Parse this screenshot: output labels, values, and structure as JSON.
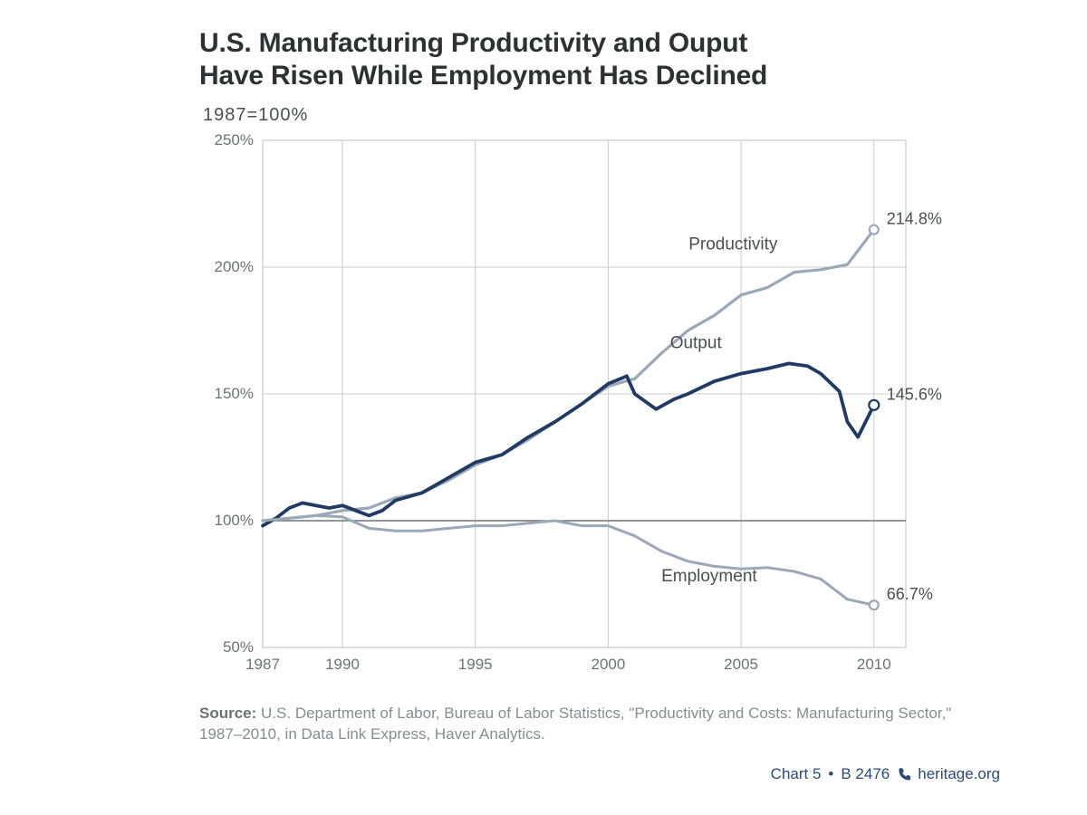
{
  "title_line1": "U.S. Manufacturing Productivity and Ouput",
  "title_line2": "Have Risen While Employment Has Declined",
  "subtitle": "1987=100%",
  "chart": {
    "type": "line",
    "background_color": "#ffffff",
    "grid_color": "#c9cbcc",
    "baseline_color": "#727476",
    "axis_label_color": "#6f7275",
    "axis_fontsize": 17,
    "series_label_fontsize": 19,
    "end_label_fontsize": 18,
    "x": {
      "min": 1987,
      "max": 2011.2,
      "ticks": [
        1987,
        1990,
        1995,
        2000,
        2005,
        2010
      ],
      "tick_labels": [
        "1987",
        "1990",
        "1995",
        "2000",
        "2005",
        "2010"
      ]
    },
    "y": {
      "min": 50,
      "max": 250,
      "ticks": [
        50,
        100,
        150,
        200,
        250
      ],
      "tick_labels": [
        "50%",
        "100%",
        "150%",
        "200%",
        "250%"
      ]
    },
    "baseline_y": 100,
    "series": [
      {
        "name": "Productivity",
        "color": "#9aa8b7",
        "line_width": 3.2,
        "marker_end": true,
        "marker_radius": 5,
        "marker_fill": "#ffffff",
        "marker_stroke": "#9aa8b7",
        "end_label": "214.8%",
        "label_pos": {
          "x": 2004.7,
          "y": 207
        },
        "data": [
          {
            "x": 1987,
            "y": 100
          },
          {
            "x": 1988,
            "y": 101
          },
          {
            "x": 1989,
            "y": 102
          },
          {
            "x": 1990,
            "y": 104
          },
          {
            "x": 1991,
            "y": 105
          },
          {
            "x": 1992,
            "y": 109
          },
          {
            "x": 1993,
            "y": 111
          },
          {
            "x": 1994,
            "y": 116
          },
          {
            "x": 1995,
            "y": 122
          },
          {
            "x": 1996,
            "y": 126
          },
          {
            "x": 1997,
            "y": 132
          },
          {
            "x": 1998,
            "y": 139
          },
          {
            "x": 1999,
            "y": 146
          },
          {
            "x": 2000,
            "y": 153
          },
          {
            "x": 2001,
            "y": 156
          },
          {
            "x": 2002,
            "y": 166
          },
          {
            "x": 2003,
            "y": 175
          },
          {
            "x": 2004,
            "y": 181
          },
          {
            "x": 2005,
            "y": 189
          },
          {
            "x": 2006,
            "y": 192
          },
          {
            "x": 2007,
            "y": 198
          },
          {
            "x": 2008,
            "y": 199
          },
          {
            "x": 2009,
            "y": 201
          },
          {
            "x": 2010,
            "y": 214.8
          }
        ]
      },
      {
        "name": "Output",
        "color": "#1f3a63",
        "line_width": 3.8,
        "marker_end": true,
        "marker_radius": 5.5,
        "marker_fill": "#ffffff",
        "marker_stroke": "#1f3a63",
        "end_label": "145.6%",
        "label_pos": {
          "x": 2003.3,
          "y": 168
        },
        "data": [
          {
            "x": 1987,
            "y": 98
          },
          {
            "x": 1987.5,
            "y": 101
          },
          {
            "x": 1988,
            "y": 105
          },
          {
            "x": 1988.5,
            "y": 107
          },
          {
            "x": 1989,
            "y": 106
          },
          {
            "x": 1989.5,
            "y": 105
          },
          {
            "x": 1990,
            "y": 106
          },
          {
            "x": 1990.5,
            "y": 104
          },
          {
            "x": 1991,
            "y": 102
          },
          {
            "x": 1991.5,
            "y": 104
          },
          {
            "x": 1992,
            "y": 108
          },
          {
            "x": 1993,
            "y": 111
          },
          {
            "x": 1994,
            "y": 117
          },
          {
            "x": 1995,
            "y": 123
          },
          {
            "x": 1996,
            "y": 126
          },
          {
            "x": 1997,
            "y": 133
          },
          {
            "x": 1998,
            "y": 139
          },
          {
            "x": 1999,
            "y": 146
          },
          {
            "x": 2000,
            "y": 154
          },
          {
            "x": 2000.7,
            "y": 157
          },
          {
            "x": 2001,
            "y": 150
          },
          {
            "x": 2001.8,
            "y": 144
          },
          {
            "x": 2002.5,
            "y": 148
          },
          {
            "x": 2003,
            "y": 150
          },
          {
            "x": 2004,
            "y": 155
          },
          {
            "x": 2005,
            "y": 158
          },
          {
            "x": 2006,
            "y": 160
          },
          {
            "x": 2006.8,
            "y": 162
          },
          {
            "x": 2007.5,
            "y": 161
          },
          {
            "x": 2008,
            "y": 158
          },
          {
            "x": 2008.7,
            "y": 151
          },
          {
            "x": 2009,
            "y": 139
          },
          {
            "x": 2009.4,
            "y": 133
          },
          {
            "x": 2010,
            "y": 145.6
          }
        ]
      },
      {
        "name": "Employment",
        "color": "#9aa8b7",
        "line_width": 3.0,
        "marker_end": true,
        "marker_radius": 5,
        "marker_fill": "#ffffff",
        "marker_stroke": "#9aa8b7",
        "end_label": "66.7%",
        "label_pos": {
          "x": 2003.8,
          "y": 76
        },
        "data": [
          {
            "x": 1987,
            "y": 100
          },
          {
            "x": 1988,
            "y": 101
          },
          {
            "x": 1989,
            "y": 102
          },
          {
            "x": 1990,
            "y": 101.5
          },
          {
            "x": 1991,
            "y": 97
          },
          {
            "x": 1992,
            "y": 96
          },
          {
            "x": 1993,
            "y": 96
          },
          {
            "x": 1994,
            "y": 97
          },
          {
            "x": 1995,
            "y": 98
          },
          {
            "x": 1996,
            "y": 98
          },
          {
            "x": 1997,
            "y": 99
          },
          {
            "x": 1998,
            "y": 100
          },
          {
            "x": 1999,
            "y": 98
          },
          {
            "x": 2000,
            "y": 98
          },
          {
            "x": 2001,
            "y": 94
          },
          {
            "x": 2002,
            "y": 88
          },
          {
            "x": 2003,
            "y": 84
          },
          {
            "x": 2004,
            "y": 82
          },
          {
            "x": 2005,
            "y": 81
          },
          {
            "x": 2006,
            "y": 81.5
          },
          {
            "x": 2007,
            "y": 80
          },
          {
            "x": 2008,
            "y": 77
          },
          {
            "x": 2009,
            "y": 69
          },
          {
            "x": 2010,
            "y": 66.7
          }
        ]
      }
    ]
  },
  "source_label": "Source:",
  "source_text": "U.S. Department of Labor, Bureau of Labor Statistics, \"Productivity and Costs: Manufacturing Sector,\" 1987–2010, in Data Link Express, Haver Analytics.",
  "footer": {
    "chart_ref": "Chart 5",
    "code": "B 2476",
    "site": "heritage.org",
    "accent_color": "#2a4a78"
  }
}
